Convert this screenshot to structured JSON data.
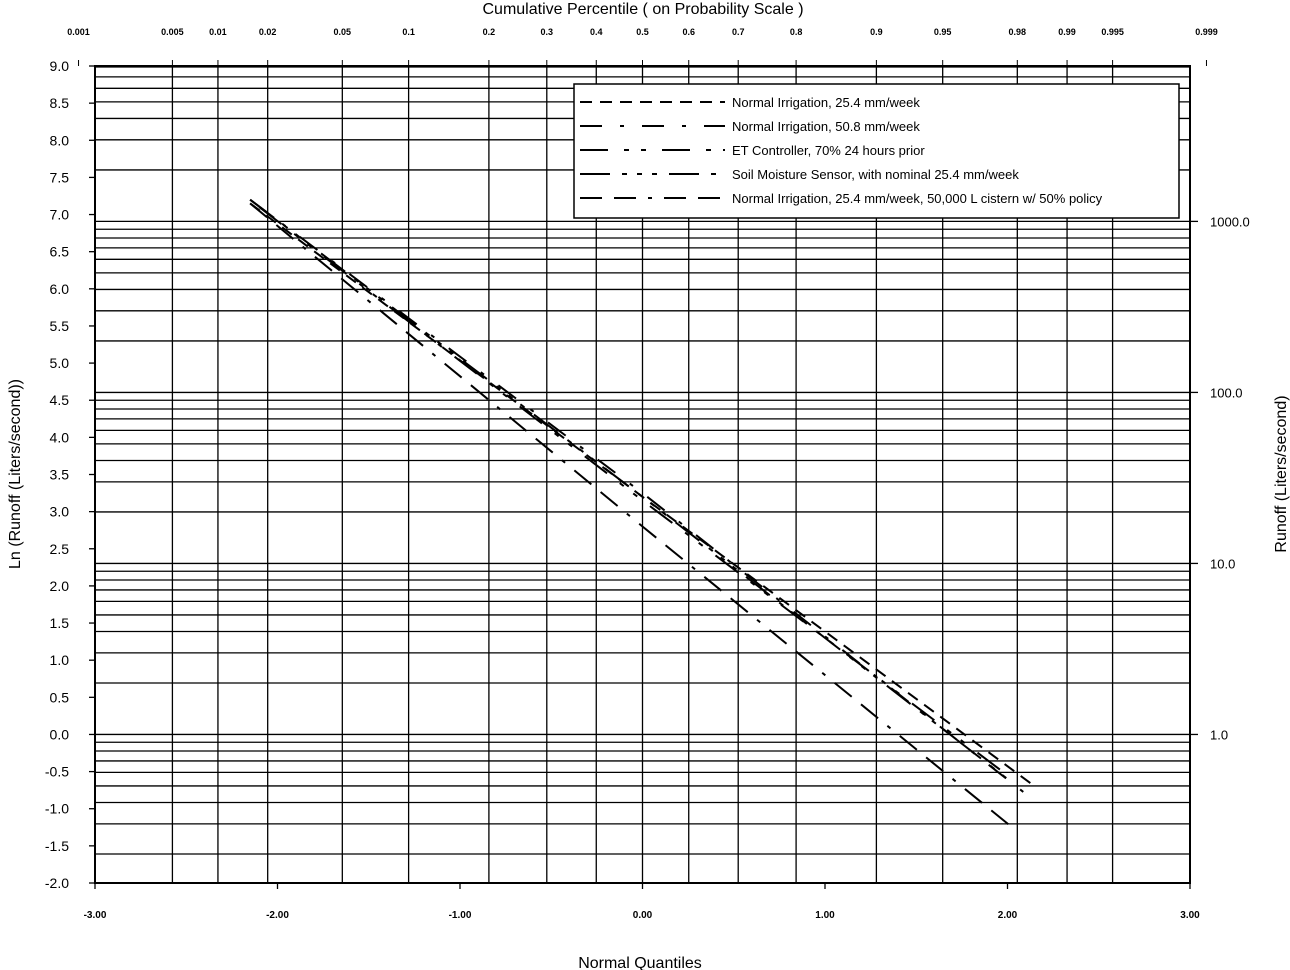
{
  "chart_data": {
    "type": "line",
    "title": "",
    "top_axis_label": "Cumulative Percentile ( on Probability Scale )",
    "xlabel": "Normal Quantiles",
    "ylabel": "Ln (Runoff (Liters/second))",
    "y2label": "Runoff (Liters/second)",
    "xlim": [
      -3,
      3
    ],
    "ylim": [
      -2,
      9
    ],
    "grid": true,
    "legend_position": "top-right",
    "x_ticks": [
      "-3.00",
      "-2.00",
      "-1.00",
      "0.00",
      "1.00",
      "2.00",
      "3.00"
    ],
    "y_ticks": [
      "-2.0",
      "-1.5",
      "-1.0",
      "-0.5",
      "0.0",
      "0.5",
      "1.0",
      "1.5",
      "2.0",
      "2.5",
      "3.0",
      "3.5",
      "4.0",
      "4.5",
      "5.0",
      "5.5",
      "6.0",
      "6.5",
      "7.0",
      "7.5",
      "8.0",
      "8.5",
      "9.0"
    ],
    "top_ticks": [
      "0.001",
      "0.005",
      "0.01",
      "0.02",
      "0.05",
      "0.1",
      "0.2",
      "0.3",
      "0.4",
      "0.5",
      "0.6",
      "0.7",
      "0.8",
      "0.9",
      "0.95",
      "0.98",
      "0.99",
      "0.995",
      "0.999"
    ],
    "right_axis_scale": "log",
    "right_ticks": [
      "1.0",
      "10.0",
      "100.0",
      "1000.0"
    ],
    "series": [
      {
        "name": "Normal Irrigation, 25.4 mm/week",
        "dash": "dashed",
        "x": [
          -2.15,
          0,
          2.15
        ],
        "y": [
          7.15,
          3.2,
          -0.7
        ]
      },
      {
        "name": "Normal Irrigation, 50.8 mm/week",
        "dash": "long-dash-dot",
        "x": [
          -2.15,
          0,
          2.1
        ],
        "y": [
          7.2,
          3.25,
          -0.8
        ]
      },
      {
        "name": "ET Controller, 70% 24 hours prior",
        "dash": "long-dash-dot-dot",
        "x": [
          -2.1,
          0,
          2.0
        ],
        "y": [
          7.1,
          3.15,
          -0.55
        ]
      },
      {
        "name": "Soil Moisture Sensor, with nominal 25.4 mm/week",
        "dash": "long-dash-dot-dot-dot",
        "x": [
          -2.15,
          0,
          2.0
        ],
        "y": [
          7.2,
          3.2,
          -0.6
        ]
      },
      {
        "name": "Normal Irrigation, 25.4 mm/week, 50,000 L cistern w/ 50% policy",
        "dash": "dash-dash-dot",
        "x": [
          -2.15,
          0,
          2.05
        ],
        "y": [
          7.15,
          2.8,
          -1.3
        ]
      }
    ]
  }
}
